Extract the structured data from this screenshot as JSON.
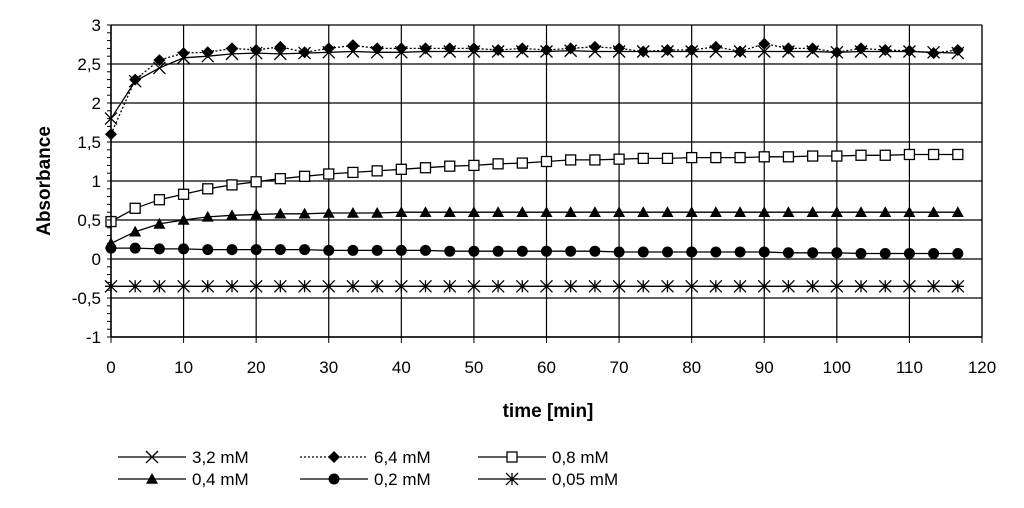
{
  "chart_data": {
    "type": "line",
    "xlabel": "time [min]",
    "ylabel": "Absorbance",
    "xlim": [
      0,
      120
    ],
    "ylim": [
      -1,
      3
    ],
    "xticks": [
      "0",
      "10",
      "20",
      "30",
      "40",
      "50",
      "60",
      "70",
      "80",
      "90",
      "100",
      "110",
      "120"
    ],
    "yticks": [
      "-1",
      "-0,5",
      "0",
      "0,5",
      "1",
      "1,5",
      "2",
      "2,5",
      "3"
    ],
    "grid": true,
    "legend_position": "bottom-left",
    "series": [
      {
        "name": "3,2 mM",
        "marker": "x",
        "line": "solid",
        "x": [
          0,
          3.33,
          6.67,
          10,
          13.33,
          16.67,
          20,
          23.33,
          26.67,
          30,
          33.33,
          36.67,
          40,
          43.33,
          46.67,
          50,
          53.33,
          56.67,
          60,
          63.33,
          66.67,
          70,
          73.33,
          76.67,
          80,
          83.33,
          86.67,
          90,
          93.33,
          96.67,
          100,
          103.33,
          106.67,
          110,
          113.33,
          116.67
        ],
        "y": [
          1.8,
          2.28,
          2.45,
          2.58,
          2.6,
          2.63,
          2.64,
          2.63,
          2.64,
          2.65,
          2.66,
          2.65,
          2.65,
          2.66,
          2.66,
          2.66,
          2.66,
          2.66,
          2.66,
          2.67,
          2.66,
          2.66,
          2.66,
          2.66,
          2.66,
          2.66,
          2.66,
          2.66,
          2.66,
          2.66,
          2.65,
          2.66,
          2.66,
          2.66,
          2.65,
          2.64
        ]
      },
      {
        "name": "6,4 mM",
        "marker": "diamond",
        "line": "dotted",
        "x": [
          0,
          3.33,
          6.67,
          10,
          13.33,
          16.67,
          20,
          23.33,
          26.67,
          30,
          33.33,
          36.67,
          40,
          43.33,
          46.67,
          50,
          53.33,
          56.67,
          60,
          63.33,
          66.67,
          70,
          73.33,
          76.67,
          80,
          83.33,
          86.67,
          90,
          93.33,
          96.67,
          100,
          103.33,
          106.67,
          110,
          113.33,
          116.67
        ],
        "y": [
          1.6,
          2.3,
          2.55,
          2.64,
          2.65,
          2.7,
          2.68,
          2.72,
          2.65,
          2.7,
          2.74,
          2.7,
          2.7,
          2.7,
          2.7,
          2.7,
          2.68,
          2.7,
          2.68,
          2.7,
          2.72,
          2.7,
          2.66,
          2.68,
          2.68,
          2.72,
          2.66,
          2.76,
          2.7,
          2.7,
          2.65,
          2.7,
          2.68,
          2.67,
          2.64,
          2.68
        ]
      },
      {
        "name": "0,8 mM",
        "marker": "square-open",
        "line": "solid",
        "x": [
          0,
          3.33,
          6.67,
          10,
          13.33,
          16.67,
          20,
          23.33,
          26.67,
          30,
          33.33,
          36.67,
          40,
          43.33,
          46.67,
          50,
          53.33,
          56.67,
          60,
          63.33,
          66.67,
          70,
          73.33,
          76.67,
          80,
          83.33,
          86.67,
          90,
          93.33,
          96.67,
          100,
          103.33,
          106.67,
          110,
          113.33,
          116.67
        ],
        "y": [
          0.48,
          0.65,
          0.76,
          0.83,
          0.9,
          0.95,
          0.99,
          1.03,
          1.06,
          1.09,
          1.11,
          1.13,
          1.15,
          1.17,
          1.19,
          1.2,
          1.22,
          1.23,
          1.25,
          1.27,
          1.27,
          1.28,
          1.29,
          1.29,
          1.3,
          1.3,
          1.3,
          1.31,
          1.31,
          1.32,
          1.32,
          1.33,
          1.33,
          1.34,
          1.34,
          1.34
        ]
      },
      {
        "name": "0,4 mM",
        "marker": "triangle",
        "line": "solid",
        "x": [
          0,
          3.33,
          6.67,
          10,
          13.33,
          16.67,
          20,
          23.33,
          26.67,
          30,
          33.33,
          36.67,
          40,
          43.33,
          46.67,
          50,
          53.33,
          56.67,
          60,
          63.33,
          66.67,
          70,
          73.33,
          76.67,
          80,
          83.33,
          86.67,
          90,
          93.33,
          96.67,
          100,
          103.33,
          106.67,
          110,
          113.33,
          116.67
        ],
        "y": [
          0.2,
          0.35,
          0.45,
          0.5,
          0.54,
          0.56,
          0.57,
          0.58,
          0.58,
          0.59,
          0.59,
          0.59,
          0.6,
          0.6,
          0.6,
          0.6,
          0.6,
          0.6,
          0.6,
          0.6,
          0.6,
          0.6,
          0.6,
          0.6,
          0.6,
          0.6,
          0.6,
          0.6,
          0.6,
          0.6,
          0.6,
          0.6,
          0.6,
          0.6,
          0.6,
          0.6
        ]
      },
      {
        "name": "0,2 mM",
        "marker": "circle",
        "line": "solid",
        "x": [
          0,
          3.33,
          6.67,
          10,
          13.33,
          16.67,
          20,
          23.33,
          26.67,
          30,
          33.33,
          36.67,
          40,
          43.33,
          46.67,
          50,
          53.33,
          56.67,
          60,
          63.33,
          66.67,
          70,
          73.33,
          76.67,
          80,
          83.33,
          86.67,
          90,
          93.33,
          96.67,
          100,
          103.33,
          106.67,
          110,
          113.33,
          116.67
        ],
        "y": [
          0.14,
          0.14,
          0.13,
          0.13,
          0.12,
          0.12,
          0.12,
          0.12,
          0.12,
          0.11,
          0.11,
          0.11,
          0.11,
          0.11,
          0.1,
          0.1,
          0.1,
          0.1,
          0.1,
          0.1,
          0.1,
          0.09,
          0.09,
          0.09,
          0.09,
          0.09,
          0.09,
          0.09,
          0.08,
          0.08,
          0.08,
          0.07,
          0.07,
          0.07,
          0.07,
          0.07
        ]
      },
      {
        "name": "0,05 mM",
        "marker": "asterisk",
        "line": "solid",
        "x": [
          0,
          3.33,
          6.67,
          10,
          13.33,
          16.67,
          20,
          23.33,
          26.67,
          30,
          33.33,
          36.67,
          40,
          43.33,
          46.67,
          50,
          53.33,
          56.67,
          60,
          63.33,
          66.67,
          70,
          73.33,
          76.67,
          80,
          83.33,
          86.67,
          90,
          93.33,
          96.67,
          100,
          103.33,
          106.67,
          110,
          113.33,
          116.67
        ],
        "y": [
          -0.35,
          -0.35,
          -0.35,
          -0.35,
          -0.35,
          -0.35,
          -0.35,
          -0.35,
          -0.35,
          -0.35,
          -0.35,
          -0.35,
          -0.35,
          -0.35,
          -0.35,
          -0.35,
          -0.35,
          -0.35,
          -0.35,
          -0.35,
          -0.35,
          -0.35,
          -0.35,
          -0.35,
          -0.35,
          -0.35,
          -0.35,
          -0.35,
          -0.35,
          -0.35,
          -0.35,
          -0.35,
          -0.35,
          -0.35,
          -0.35,
          -0.35
        ]
      }
    ]
  }
}
